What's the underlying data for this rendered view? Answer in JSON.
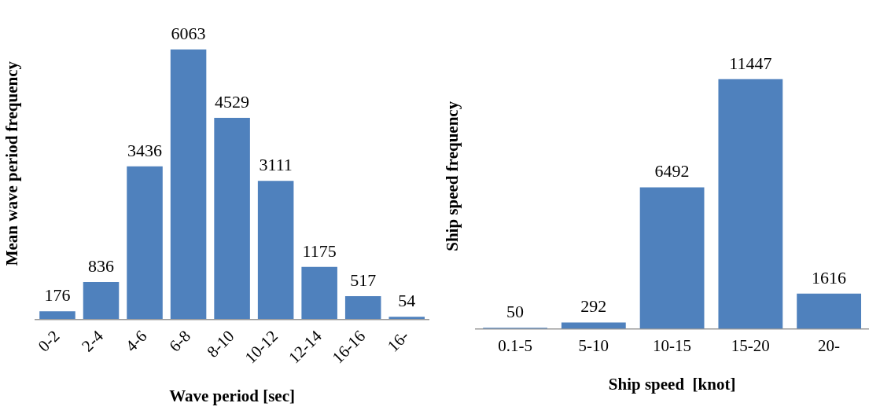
{
  "chart_data": [
    {
      "type": "bar",
      "categories": [
        "0-2",
        "2-4",
        "4-6",
        "6-8",
        "8-10",
        "10-12",
        "12-14",
        "16-16",
        "16-"
      ],
      "values": [
        176,
        836,
        3436,
        6063,
        4529,
        3111,
        1175,
        517,
        54
      ],
      "color": "#4f81bd",
      "xlabel": "Wave period [sec]",
      "ylabel": "Mean wave period frequency",
      "data_labels": true
    },
    {
      "type": "bar",
      "categories": [
        "0.1-5",
        "5-10",
        "10-15",
        "15-20",
        "20-"
      ],
      "values": [
        50,
        292,
        6492,
        11447,
        1616
      ],
      "color": "#4f81bd",
      "xlabel": "Ship speed  [knot]",
      "ylabel": "Ship speed frequency",
      "data_labels": true
    }
  ]
}
